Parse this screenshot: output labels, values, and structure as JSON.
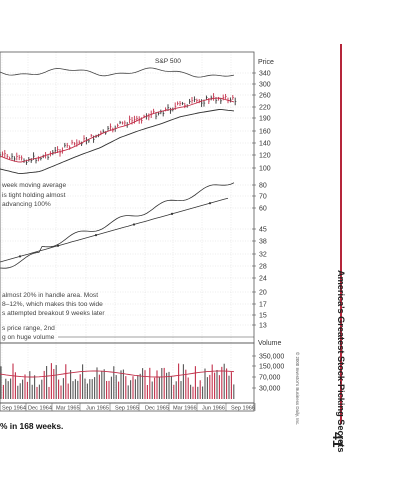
{
  "chart": {
    "index_label": "S&P 500",
    "price_header": "Price",
    "price_ticks": [
      "340",
      "300",
      "260",
      "220",
      "190",
      "160",
      "140",
      "120",
      "100",
      "80",
      "70",
      "60",
      "45",
      "38",
      "32",
      "28",
      "24",
      "20",
      "17",
      "15",
      "13"
    ],
    "volume_header": "Volume",
    "volume_ticks": [
      "350,000",
      "150,000",
      "70,000",
      "30,000"
    ],
    "months": [
      "Sep 1964",
      "Dec 1964",
      "Mar 1965",
      "Jun 1965",
      "Sep 1965",
      "Dec 1965",
      "Mar 1966",
      "Jun 1966",
      "Sep 1966"
    ],
    "annotations": {
      "block1": [
        "week moving average",
        "is tight holding almost",
        "advancing 100%"
      ],
      "block2": [
        "almost 20% in handle area. Most",
        "8–12%, which makes this too wide",
        "s attempted breakout 9 weeks later"
      ],
      "block3": [
        "s price range, 2nd",
        "g on huge volume"
      ]
    },
    "colors": {
      "up_bar": "#c2304a",
      "down_bar": "#333333",
      "moving_average": "#c2304a",
      "relative_strength": "#333333"
    }
  },
  "sidebar": {
    "book_title": "America's Greatest Stock-Picking Secrets",
    "page_number": "41",
    "copyright": "© 2000 Investor's Business Daily, Inc."
  },
  "caption": "% in 168 weeks."
}
